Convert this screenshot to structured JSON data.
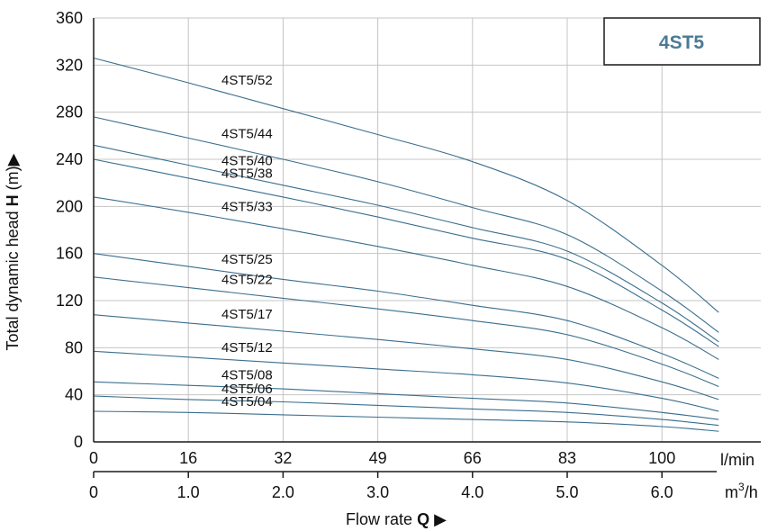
{
  "chart_data": {
    "type": "line",
    "title": "4ST5",
    "ylabel": "Total dynamic head",
    "ylabel_symbol": "H",
    "ylabel_unit": "(m)",
    "xlabel": "Flow rate",
    "xlabel_symbol": "Q",
    "ylim": [
      0,
      360
    ],
    "y_ticks": [
      "0",
      "40",
      "80",
      "120",
      "160",
      "200",
      "240",
      "280",
      "320",
      "360"
    ],
    "xlim_m3h": [
      0,
      6.6
    ],
    "x_ticks_lmin": [
      "0",
      "16",
      "32",
      "49",
      "66",
      "83",
      "100"
    ],
    "x_ticks_m3h": [
      "0",
      "1.0",
      "2.0",
      "3.0",
      "4.0",
      "5.0",
      "6.0"
    ],
    "x_unit_lmin": "l/min",
    "x_unit_m3h_base": "m",
    "x_unit_m3h_sup": "3",
    "x_unit_m3h_tail": "/h",
    "grid": true,
    "colors": {
      "curve": "#3a6e8e",
      "grid": "#c4c4c4",
      "axis": "#1a1a1a",
      "badge_text": "#4b7a96"
    },
    "series": [
      {
        "name": "4ST5/52",
        "x": [
          0,
          1.0,
          2.0,
          3.0,
          4.0,
          5.0,
          6.0,
          6.6
        ],
        "y": [
          326,
          305,
          283,
          261,
          238,
          205,
          150,
          110
        ]
      },
      {
        "name": "4ST5/44",
        "x": [
          0,
          1.0,
          2.0,
          3.0,
          4.0,
          5.0,
          6.0,
          6.6
        ],
        "y": [
          276,
          258,
          240,
          221,
          199,
          176,
          128,
          93
        ]
      },
      {
        "name": "4ST5/40",
        "x": [
          0,
          1.0,
          2.0,
          3.0,
          4.0,
          5.0,
          6.0,
          6.6
        ],
        "y": [
          252,
          235,
          218,
          201,
          182,
          162,
          118,
          85
        ]
      },
      {
        "name": "4ST5/38",
        "x": [
          0,
          1.0,
          2.0,
          3.0,
          4.0,
          5.0,
          6.0,
          6.6
        ],
        "y": [
          240,
          224,
          208,
          191,
          173,
          155,
          112,
          81
        ]
      },
      {
        "name": "4ST5/33",
        "x": [
          0,
          1.0,
          2.0,
          3.0,
          4.0,
          5.0,
          6.0,
          6.6
        ],
        "y": [
          208,
          195,
          181,
          166,
          150,
          132,
          97,
          70
        ]
      },
      {
        "name": "4ST5/25",
        "x": [
          0,
          1.0,
          2.0,
          3.0,
          4.0,
          5.0,
          6.0,
          6.6
        ],
        "y": [
          160,
          149,
          138,
          128,
          116,
          103,
          75,
          54
        ]
      },
      {
        "name": "4ST5/22",
        "x": [
          0,
          1.0,
          2.0,
          3.0,
          4.0,
          5.0,
          6.0,
          6.6
        ],
        "y": [
          140,
          131,
          122,
          113,
          103,
          91,
          66,
          47
        ]
      },
      {
        "name": "4ST5/17",
        "x": [
          0,
          1.0,
          2.0,
          3.0,
          4.0,
          5.0,
          6.0,
          6.6
        ],
        "y": [
          108,
          101,
          94,
          87,
          79,
          70,
          51,
          36
        ]
      },
      {
        "name": "4ST5/12",
        "x": [
          0,
          1.0,
          2.0,
          3.0,
          4.0,
          5.0,
          6.0,
          6.6
        ],
        "y": [
          77,
          72,
          67,
          62,
          57,
          50,
          37,
          26
        ]
      },
      {
        "name": "4ST5/08",
        "x": [
          0,
          1.0,
          2.0,
          3.0,
          4.0,
          5.0,
          6.0,
          6.6
        ],
        "y": [
          51,
          48,
          45,
          41,
          37,
          33,
          25,
          19
        ]
      },
      {
        "name": "4ST5/06",
        "x": [
          0,
          1.0,
          2.0,
          3.0,
          4.0,
          5.0,
          6.0,
          6.6
        ],
        "y": [
          39,
          36,
          34,
          31,
          28,
          25,
          19,
          14
        ]
      },
      {
        "name": "4ST5/04",
        "x": [
          0,
          1.0,
          2.0,
          3.0,
          4.0,
          5.0,
          6.0,
          6.6
        ],
        "y": [
          26,
          25,
          23,
          21,
          19,
          17,
          13,
          9
        ]
      }
    ]
  }
}
